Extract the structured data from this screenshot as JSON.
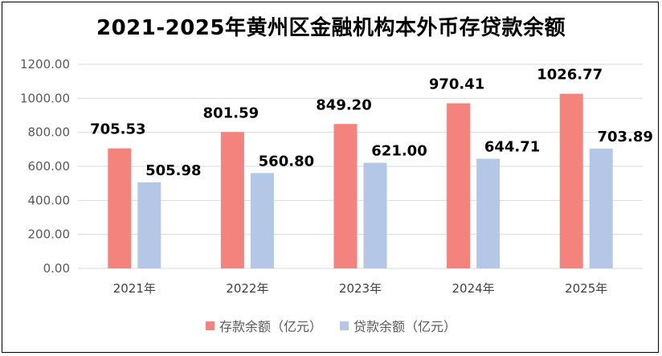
{
  "chart_data": {
    "type": "bar",
    "title": "2021-2025年黄州区金融机构本外币存贷款余额",
    "categories": [
      "2021年",
      "2022年",
      "2023年",
      "2024年",
      "2025年"
    ],
    "series": [
      {
        "name": "存款余额（亿元）",
        "color": "#F4837D",
        "values": [
          705.53,
          801.59,
          849.2,
          970.41,
          1026.77
        ],
        "labels": [
          "705.53",
          "801.59",
          "849.20",
          "970.41",
          "1026.77"
        ]
      },
      {
        "name": "贷款余额（亿元）",
        "color": "#B4C7E7",
        "values": [
          505.98,
          560.8,
          621.0,
          644.71,
          703.89
        ],
        "labels": [
          "505.98",
          "560.80",
          "621.00",
          "644.71",
          "703.89"
        ]
      }
    ],
    "yticks": [
      "0.00",
      "200.00",
      "400.00",
      "600.00",
      "800.00",
      "1000.00",
      "1200.00"
    ],
    "ylim": [
      0,
      1200
    ],
    "xlabel": "",
    "ylabel": "",
    "grid": true,
    "legend_position": "bottom"
  }
}
